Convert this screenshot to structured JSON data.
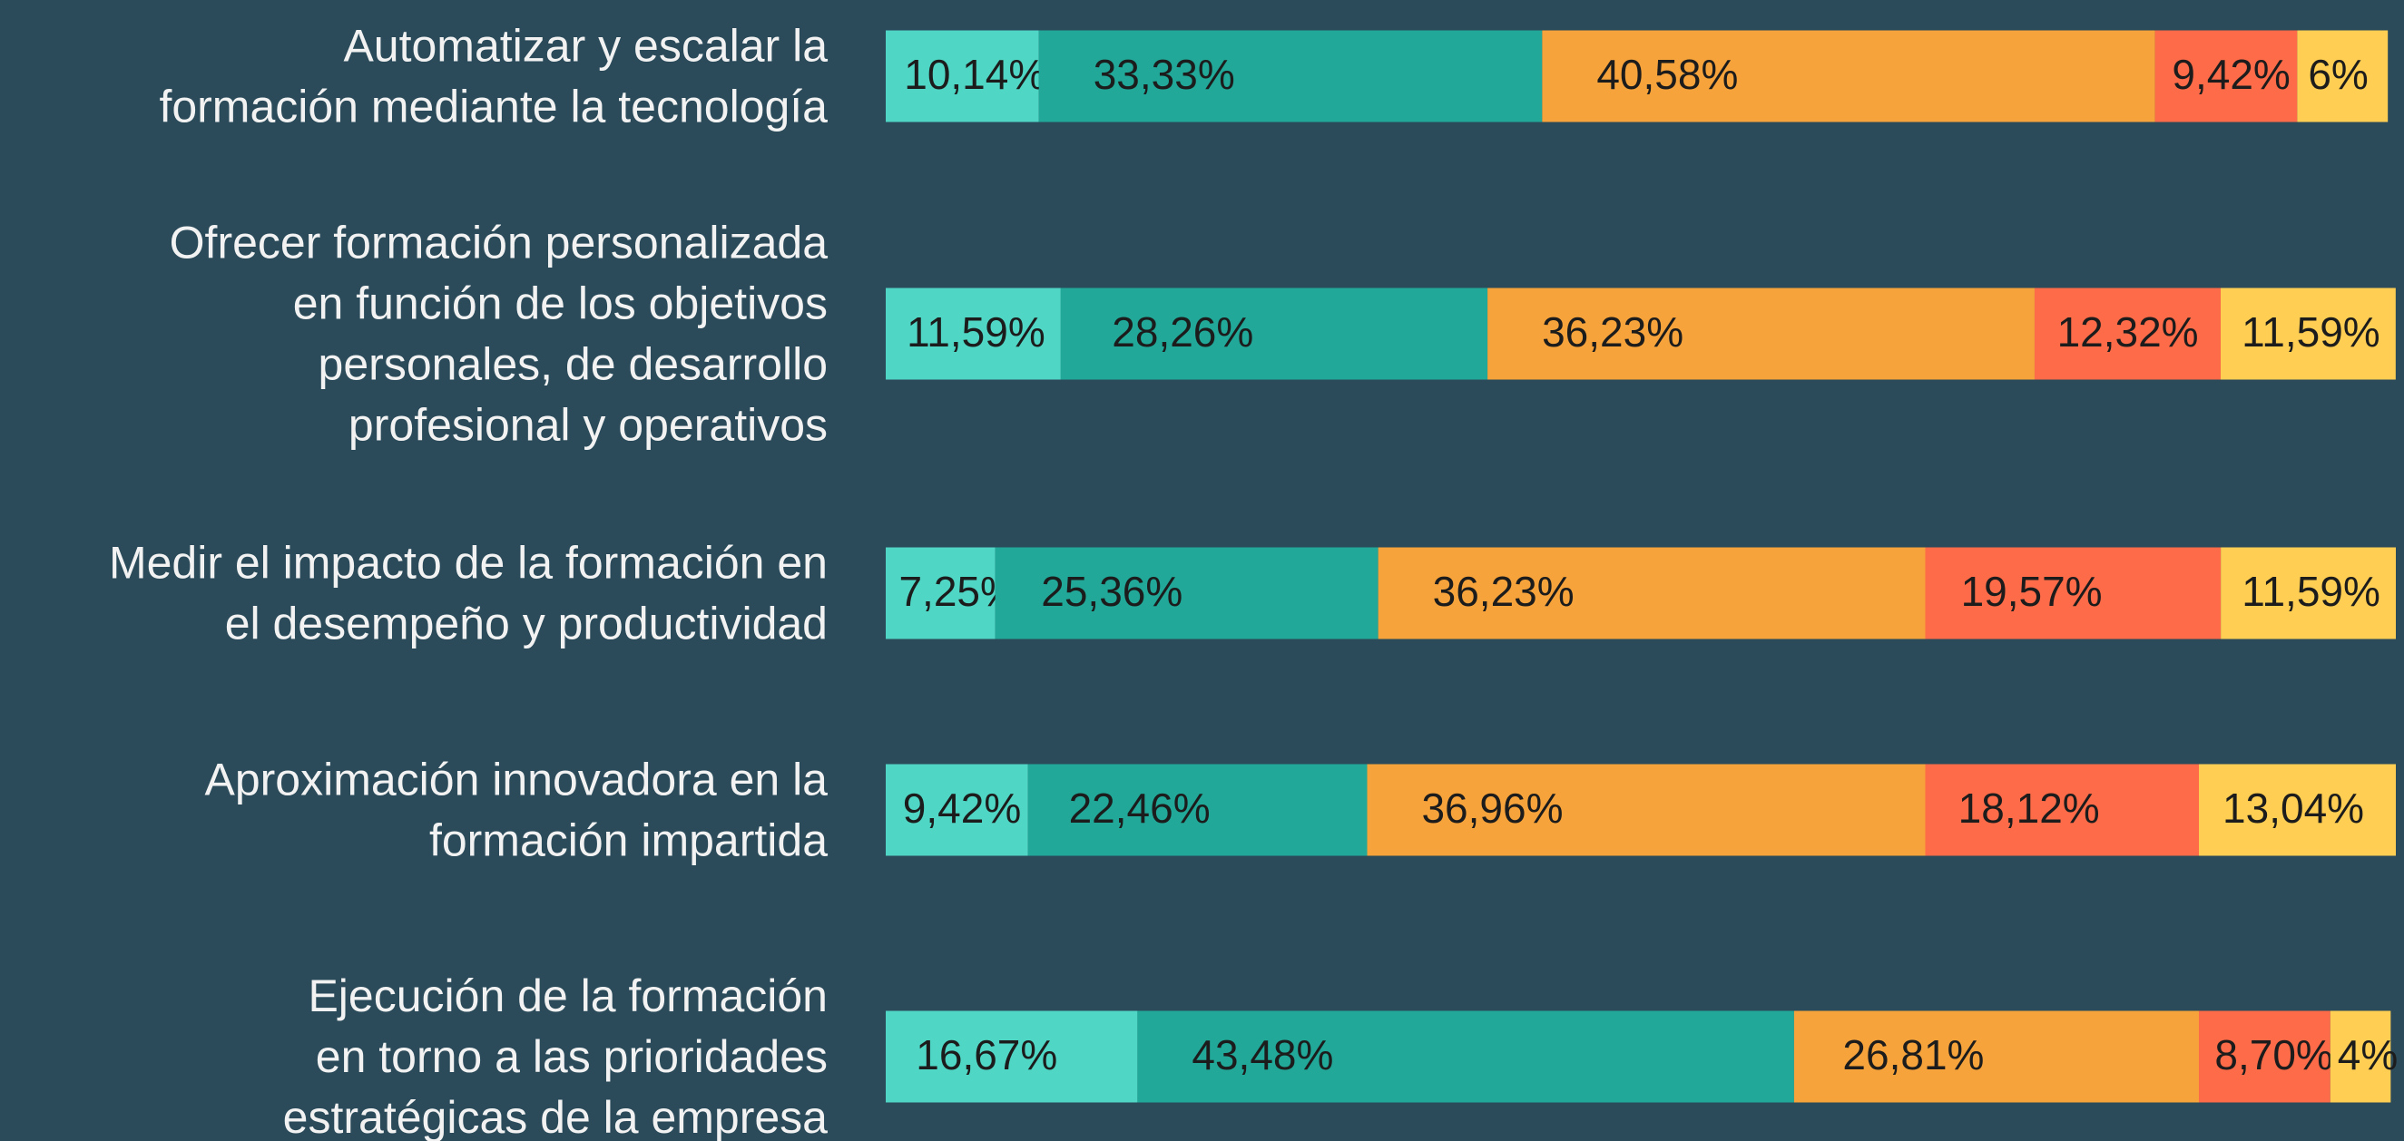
{
  "chart_data": {
    "type": "stacked-bar-horizontal",
    "categories": [
      "Automatizar y escalar la\nformación mediante la tecnología",
      "Ofrecer formación personalizada\nen función de los objetivos\npersonales, de desarrollo\nprofesional y operativos",
      "Medir el impacto de la formación en\nel desempeño y productividad",
      "Aproximación innovadora en la\nformación impartida",
      "Ejecución de la formación\nen torno a las prioridades\nestratégicas de la empresa"
    ],
    "series": [
      {
        "color": "#4fd6c4",
        "values": [
          10.14,
          11.59,
          7.25,
          9.42,
          16.67
        ],
        "value_labels": [
          "10,14%",
          "11,59%",
          "7,25%",
          "9,42%",
          "16,67%"
        ]
      },
      {
        "color": "#21a898",
        "values": [
          33.33,
          28.26,
          25.36,
          22.46,
          43.48
        ],
        "value_labels": [
          "33,33%",
          "28,26%",
          "25,36%",
          "22,46%",
          "43,48%"
        ]
      },
      {
        "color": "#f6a33b",
        "values": [
          40.58,
          36.23,
          36.23,
          36.96,
          26.81
        ],
        "value_labels": [
          "40,58%",
          "36,23%",
          "36,23%",
          "36,96%",
          "26,81%"
        ]
      },
      {
        "color": "#fe6b48",
        "values": [
          9.42,
          12.32,
          19.57,
          18.12,
          8.7
        ],
        "value_labels": [
          "9,42%",
          "12,32%",
          "19,57%",
          "18,12%",
          "8,70%"
        ]
      },
      {
        "color": "#ffce52",
        "values": [
          6,
          11.59,
          11.59,
          13.04,
          4
        ],
        "value_labels": [
          "6%",
          "11,59%",
          "11,59%",
          "13,04%",
          "4%"
        ]
      }
    ],
    "xlim": [
      0,
      100
    ]
  }
}
